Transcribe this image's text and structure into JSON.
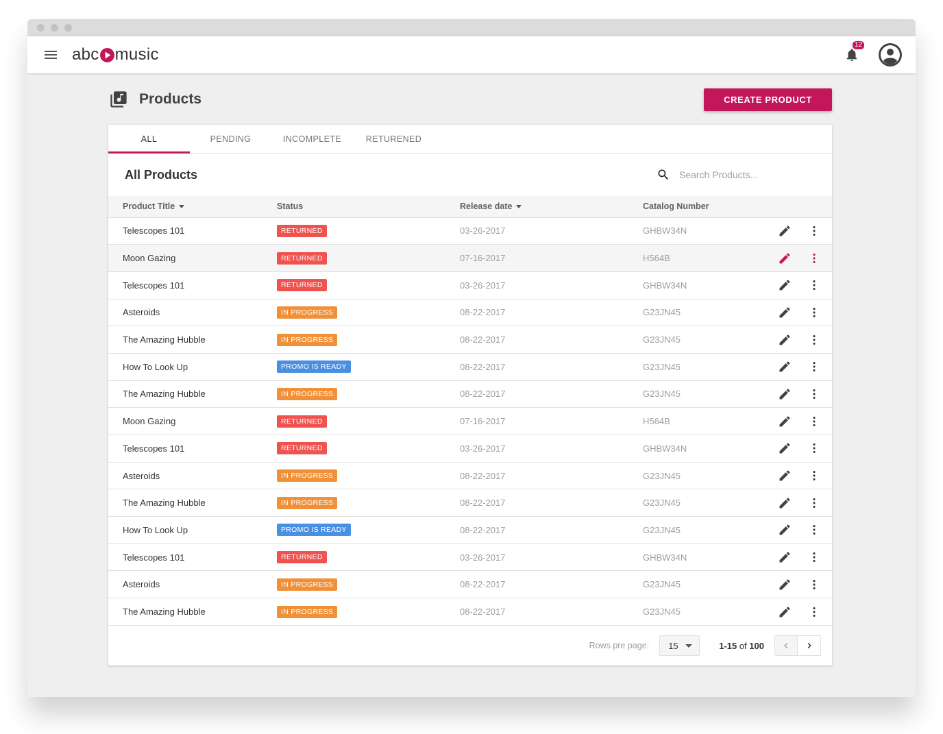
{
  "brand": {
    "logo_prefix": "abc",
    "logo_suffix": "music",
    "accent": "#c2185b"
  },
  "header": {
    "notification_count": "12"
  },
  "page": {
    "title": "Products",
    "create_label": "CREATE PRODUCT"
  },
  "tabs": [
    {
      "label": "ALL",
      "active": true
    },
    {
      "label": "PENDING",
      "active": false
    },
    {
      "label": "INCOMPLETE",
      "active": false
    },
    {
      "label": "RETURENED",
      "active": false
    }
  ],
  "card": {
    "title": "All Products",
    "search_placeholder": "Search Products..."
  },
  "columns": {
    "title": "Product Title",
    "status": "Status",
    "release": "Release date",
    "catalog": "Catalog Number"
  },
  "status_colors": {
    "returned": "#ef5350",
    "progress": "#f0913a",
    "promo": "#4a90e2"
  },
  "rows": [
    {
      "title": "Telescopes 101",
      "status": "RETURNED",
      "status_type": "returned",
      "date": "03-26-2017",
      "catalog": "GHBW34N",
      "highlight": false
    },
    {
      "title": "Moon Gazing",
      "status": "RETURNED",
      "status_type": "returned",
      "date": "07-16-2017",
      "catalog": "H564B",
      "highlight": true
    },
    {
      "title": "Telescopes 101",
      "status": "RETURNED",
      "status_type": "returned",
      "date": "03-26-2017",
      "catalog": "GHBW34N",
      "highlight": false
    },
    {
      "title": "Asteroids",
      "status": "IN PROGRESS",
      "status_type": "progress",
      "date": "08-22-2017",
      "catalog": "G23JN45",
      "highlight": false
    },
    {
      "title": "The Amazing Hubble",
      "status": "IN PROGRESS",
      "status_type": "progress",
      "date": "08-22-2017",
      "catalog": "G23JN45",
      "highlight": false
    },
    {
      "title": "How To Look Up",
      "status": "PROMO IS READY",
      "status_type": "promo",
      "date": "08-22-2017",
      "catalog": "G23JN45",
      "highlight": false
    },
    {
      "title": "The Amazing Hubble",
      "status": "IN PROGRESS",
      "status_type": "progress",
      "date": "08-22-2017",
      "catalog": "G23JN45",
      "highlight": false
    },
    {
      "title": "Moon Gazing",
      "status": "RETURNED",
      "status_type": "returned",
      "date": "07-16-2017",
      "catalog": "H564B",
      "highlight": false
    },
    {
      "title": "Telescopes 101",
      "status": "RETURNED",
      "status_type": "returned",
      "date": "03-26-2017",
      "catalog": "GHBW34N",
      "highlight": false
    },
    {
      "title": "Asteroids",
      "status": "IN PROGRESS",
      "status_type": "progress",
      "date": "08-22-2017",
      "catalog": "G23JN45",
      "highlight": false
    },
    {
      "title": "The Amazing Hubble",
      "status": "IN PROGRESS",
      "status_type": "progress",
      "date": "08-22-2017",
      "catalog": "G23JN45",
      "highlight": false
    },
    {
      "title": "How To Look Up",
      "status": "PROMO IS READY",
      "status_type": "promo",
      "date": "08-22-2017",
      "catalog": "G23JN45",
      "highlight": false
    },
    {
      "title": "Telescopes 101",
      "status": "RETURNED",
      "status_type": "returned",
      "date": "03-26-2017",
      "catalog": "GHBW34N",
      "highlight": false
    },
    {
      "title": "Asteroids",
      "status": "IN PROGRESS",
      "status_type": "progress",
      "date": "08-22-2017",
      "catalog": "G23JN45",
      "highlight": false
    },
    {
      "title": "The Amazing Hubble",
      "status": "IN PROGRESS",
      "status_type": "progress",
      "date": "08-22-2017",
      "catalog": "G23JN45",
      "highlight": false
    }
  ],
  "pagination": {
    "rows_label": "Rows pre page:",
    "rows_value": "15",
    "range_bold": "1-15",
    "range_of": " of ",
    "total": "100"
  },
  "icons": [
    "menu-icon",
    "play-icon",
    "bell-icon",
    "account-icon",
    "library-music-icon",
    "search-icon",
    "sort-arrow-icon",
    "edit-icon",
    "more-vert-icon",
    "chevron-left-icon",
    "chevron-right-icon"
  ]
}
